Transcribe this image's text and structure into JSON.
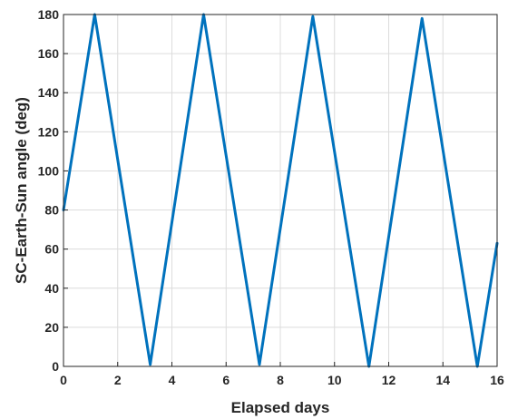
{
  "chart_data": {
    "type": "line",
    "title": "",
    "xlabel": "Elapsed days",
    "ylabel": "SC-Earth-Sun angle (deg)",
    "xlim": [
      0,
      16
    ],
    "ylim": [
      0,
      180
    ],
    "grid": true,
    "x_ticks": [
      "0",
      "2",
      "4",
      "6",
      "8",
      "10",
      "12",
      "14",
      "16"
    ],
    "y_ticks": [
      "0",
      "20",
      "40",
      "60",
      "80",
      "100",
      "120",
      "140",
      "160",
      "180"
    ],
    "series": [
      {
        "color": "#0072BD",
        "x": [
          0,
          1.15,
          3.2,
          5.17,
          7.23,
          9.2,
          11.27,
          13.23,
          15.27,
          16
        ],
        "y": [
          80,
          180,
          1,
          180,
          1,
          179,
          0,
          178,
          0,
          63
        ]
      }
    ]
  }
}
